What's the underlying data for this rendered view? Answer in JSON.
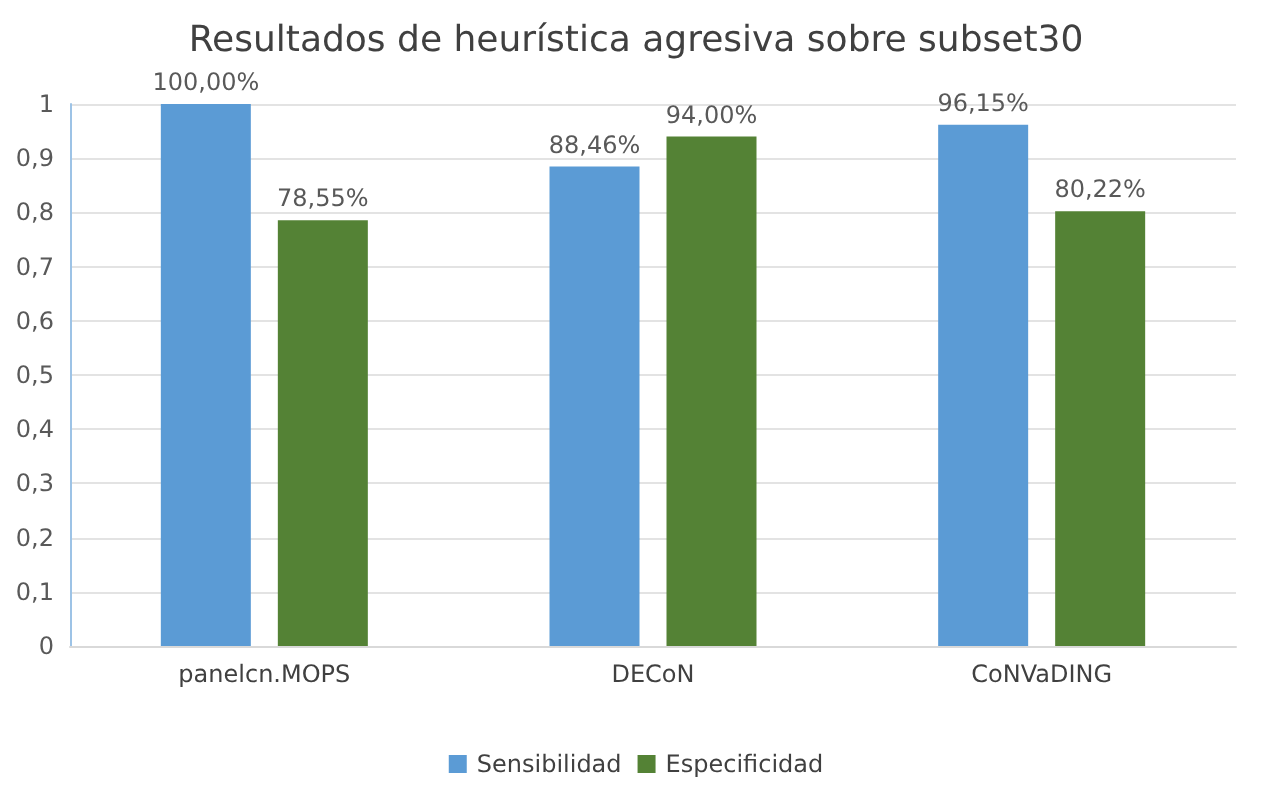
{
  "chart_data": {
    "type": "bar",
    "title": "Resultados de heurística agresiva sobre subset30",
    "categories": [
      "panelcn.MOPS",
      "DECoN",
      "CoNVaDING"
    ],
    "series": [
      {
        "name": "Sensibilidad",
        "color": "#5b9bd5",
        "values": [
          1,
          0.8846,
          0.9615
        ],
        "value_labels": [
          "100,00%",
          "88,46%",
          "96,15%"
        ]
      },
      {
        "name": "Especificidad",
        "color": "#548235",
        "values": [
          0.7855,
          0.94,
          0.8022
        ],
        "value_labels": [
          "78,55%",
          "94,00%",
          "80,22%"
        ]
      }
    ],
    "ylim": [
      0,
      1
    ],
    "yticks": [
      {
        "value": 0,
        "label": "0"
      },
      {
        "value": 0.1,
        "label": "0,1"
      },
      {
        "value": 0.2,
        "label": "0,2"
      },
      {
        "value": 0.3,
        "label": "0,3"
      },
      {
        "value": 0.4,
        "label": "0,4"
      },
      {
        "value": 0.5,
        "label": "0,5"
      },
      {
        "value": 0.6,
        "label": "0,6"
      },
      {
        "value": 0.7,
        "label": "0,7"
      },
      {
        "value": 0.8,
        "label": "0,8"
      },
      {
        "value": 0.9,
        "label": "0,9"
      },
      {
        "value": 1,
        "label": "1"
      }
    ],
    "grid": "y",
    "legend": "bottom"
  }
}
